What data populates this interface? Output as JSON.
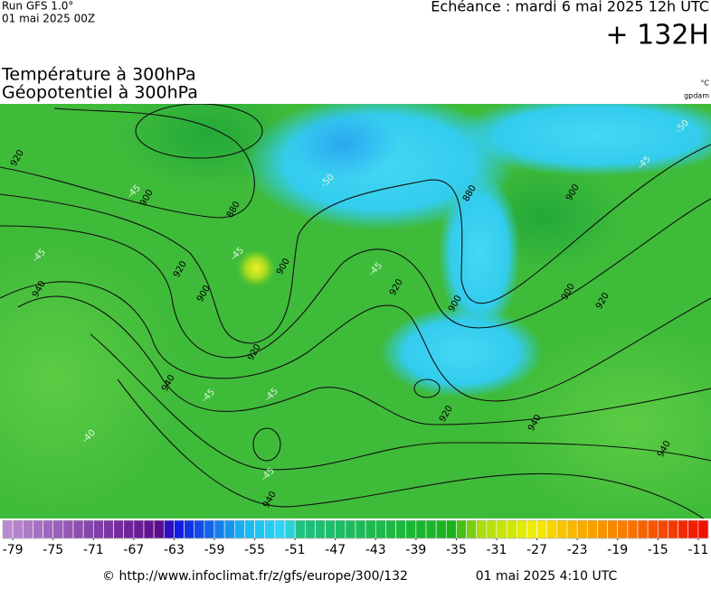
{
  "header": {
    "run": "Run GFS 1.0°",
    "run_date": "01 mai 2025 00Z",
    "valid_time": "Echéance : mardi 6 mai 2025 12h UTC",
    "lead": "+ 132H",
    "title_1": "Température à 300hPa",
    "title_2": "Géopotentiel à 300hPa",
    "unit_temperature": "°C",
    "unit_geopotential": "gpdam"
  },
  "map": {
    "geopotential_labels": [
      880,
      880,
      900,
      900,
      900,
      900,
      900,
      920,
      920,
      920,
      920,
      920,
      940,
      940,
      940,
      940,
      940,
      920,
      900
    ],
    "temperature_labels": [
      -45,
      -45,
      -45,
      -45,
      -50,
      -45,
      -45,
      -40,
      -45,
      -45,
      -50
    ]
  },
  "colorbar": {
    "range": [
      -80,
      -10
    ],
    "ticks": [
      -79,
      -75,
      -71,
      -67,
      -63,
      -59,
      -55,
      -51,
      -47,
      -43,
      -39,
      -35,
      -31,
      -27,
      -23,
      -19,
      -15,
      -11
    ]
  },
  "footer": {
    "url": "© http://www.infoclimat.fr/z/gfs/europe/300/132",
    "generated": "01 mai 2025  4:10 UTC"
  }
}
